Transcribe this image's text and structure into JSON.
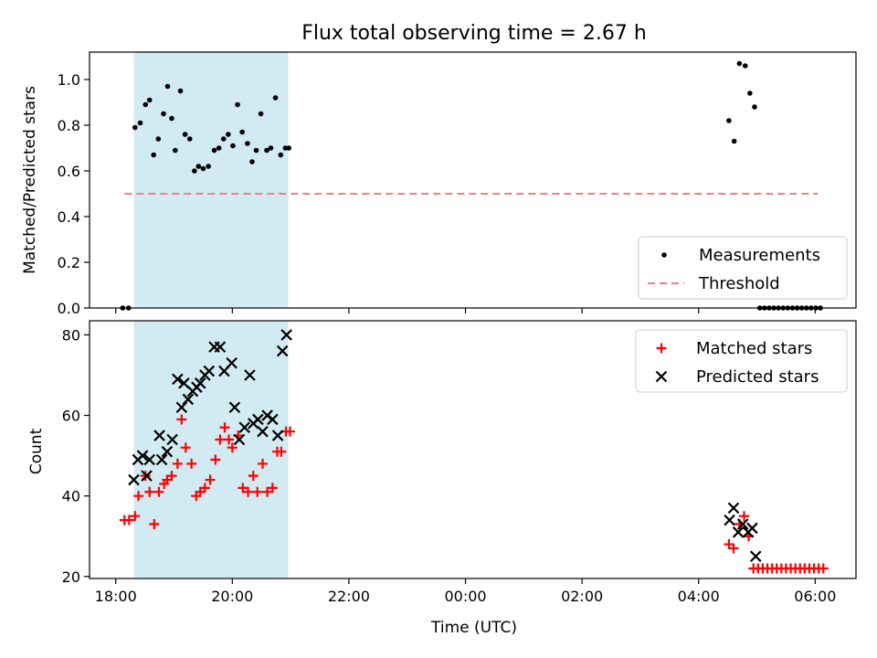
{
  "chart_data": {
    "type": "scatter",
    "title": "Flux total observing time = 2.67 h",
    "xlabel": "Time (UTC)",
    "x_unit": "hours_since_18:00",
    "xlim": [
      -0.45,
      12.7
    ],
    "x_ticks": [
      {
        "value": 0,
        "label": "18:00"
      },
      {
        "value": 2,
        "label": "20:00"
      },
      {
        "value": 4,
        "label": "22:00"
      },
      {
        "value": 6,
        "label": "00:00"
      },
      {
        "value": 8,
        "label": "02:00"
      },
      {
        "value": 10,
        "label": "04:00"
      },
      {
        "value": 12,
        "label": "06:00"
      }
    ],
    "highlight_span": {
      "start": 0.31,
      "end": 2.96,
      "color": "#add8e6"
    },
    "panels": [
      {
        "id": "ratio",
        "ylabel": "Matched/Predicted stars",
        "ylim": [
          0,
          1.12
        ],
        "y_ticks": [
          {
            "value": 0.0,
            "label": "0.0"
          },
          {
            "value": 0.2,
            "label": "0.2"
          },
          {
            "value": 0.4,
            "label": "0.4"
          },
          {
            "value": 0.6,
            "label": "0.6"
          },
          {
            "value": 0.8,
            "label": "0.8"
          },
          {
            "value": 1.0,
            "label": "1.0"
          }
        ],
        "legend": {
          "position": "lower-right"
        },
        "series": [
          {
            "name": "Measurements",
            "marker": "dot",
            "color": "#000000",
            "x": [
              0.12,
              0.22,
              0.33,
              0.42,
              0.51,
              0.58,
              0.65,
              0.73,
              0.82,
              0.89,
              0.96,
              1.02,
              1.11,
              1.19,
              1.27,
              1.35,
              1.42,
              1.5,
              1.59,
              1.69,
              1.77,
              1.85,
              1.93,
              2.01,
              2.09,
              2.17,
              2.26,
              2.34,
              2.41,
              2.49,
              2.59,
              2.66,
              2.74,
              2.83,
              2.91,
              2.97,
              10.52,
              10.61,
              10.7,
              10.8,
              10.88,
              10.96,
              11.05,
              11.13,
              11.21,
              11.29,
              11.37,
              11.45,
              11.53,
              11.61,
              11.69,
              11.77,
              11.85,
              11.93,
              12.01,
              12.09
            ],
            "y": [
              0.0,
              0.0,
              0.79,
              0.81,
              0.89,
              0.91,
              0.67,
              0.74,
              0.85,
              0.97,
              0.83,
              0.69,
              0.95,
              0.76,
              0.74,
              0.6,
              0.62,
              0.61,
              0.62,
              0.69,
              0.7,
              0.74,
              0.76,
              0.71,
              0.89,
              0.77,
              0.72,
              0.64,
              0.69,
              0.85,
              0.69,
              0.7,
              0.92,
              0.67,
              0.7,
              0.7,
              0.82,
              0.73,
              1.07,
              1.06,
              0.94,
              0.88,
              0.0,
              0.0,
              0.0,
              0.0,
              0.0,
              0.0,
              0.0,
              0.0,
              0.0,
              0.0,
              0.0,
              0.0,
              0.0,
              0.0
            ]
          },
          {
            "name": "Threshold",
            "marker": "dashed-line",
            "color": "#f08080",
            "x": [
              0.15,
              12.05
            ],
            "y": [
              0.5,
              0.5
            ]
          }
        ]
      },
      {
        "id": "count",
        "ylabel": "Count",
        "ylim": [
          19.5,
          83.5
        ],
        "y_ticks": [
          {
            "value": 20,
            "label": "20"
          },
          {
            "value": 40,
            "label": "40"
          },
          {
            "value": 60,
            "label": "60"
          },
          {
            "value": 80,
            "label": "80"
          }
        ],
        "legend": {
          "position": "top-right"
        },
        "series": [
          {
            "name": "Matched stars",
            "marker": "plus",
            "color": "#ff0000",
            "x": [
              0.15,
              0.23,
              0.33,
              0.39,
              0.51,
              0.58,
              0.66,
              0.74,
              0.83,
              0.88,
              0.96,
              1.06,
              1.13,
              1.2,
              1.3,
              1.38,
              1.45,
              1.53,
              1.62,
              1.71,
              1.79,
              1.87,
              1.94,
              2.0,
              2.1,
              2.18,
              2.27,
              2.36,
              2.43,
              2.52,
              2.6,
              2.69,
              2.77,
              2.84,
              2.92,
              2.99,
              10.52,
              10.6,
              10.7,
              10.78,
              10.86,
              10.94,
              11.02,
              11.1,
              11.18,
              11.26,
              11.34,
              11.42,
              11.5,
              11.58,
              11.66,
              11.74,
              11.82,
              11.9,
              11.98,
              12.06,
              12.14
            ],
            "y": [
              34,
              34,
              35,
              40,
              45,
              41,
              33,
              41,
              43,
              44,
              45,
              48,
              59,
              52,
              48,
              40,
              41,
              42,
              44,
              49,
              54,
              57,
              54,
              52,
              55,
              42,
              41,
              45,
              41,
              48,
              41,
              42,
              51,
              51,
              56,
              56,
              28,
              27,
              33,
              35,
              30,
              22,
              22,
              22,
              22,
              22,
              22,
              22,
              22,
              22,
              22,
              22,
              22,
              22,
              22,
              22,
              22
            ]
          },
          {
            "name": "Predicted stars",
            "marker": "x",
            "color": "#000000",
            "x": [
              0.31,
              0.38,
              0.46,
              0.53,
              0.58,
              0.75,
              0.79,
              0.88,
              0.97,
              1.06,
              1.13,
              1.17,
              1.24,
              1.32,
              1.39,
              1.45,
              1.53,
              1.6,
              1.69,
              1.79,
              1.86,
              1.99,
              2.04,
              2.12,
              2.21,
              2.3,
              2.36,
              2.44,
              2.52,
              2.6,
              2.69,
              2.78,
              2.86,
              2.93,
              10.53,
              10.6,
              10.68,
              10.76,
              10.85,
              10.92,
              10.98
            ],
            "y": [
              44,
              49,
              50,
              45,
              49,
              55,
              49,
              51,
              54,
              69,
              62,
              68,
              64,
              66,
              67,
              68,
              70,
              71,
              77,
              77,
              71,
              73,
              62,
              54,
              57,
              70,
              58,
              59,
              56,
              60,
              59,
              55,
              76,
              80,
              34,
              37,
              31,
              33,
              31,
              32,
              25
            ]
          }
        ]
      }
    ]
  }
}
